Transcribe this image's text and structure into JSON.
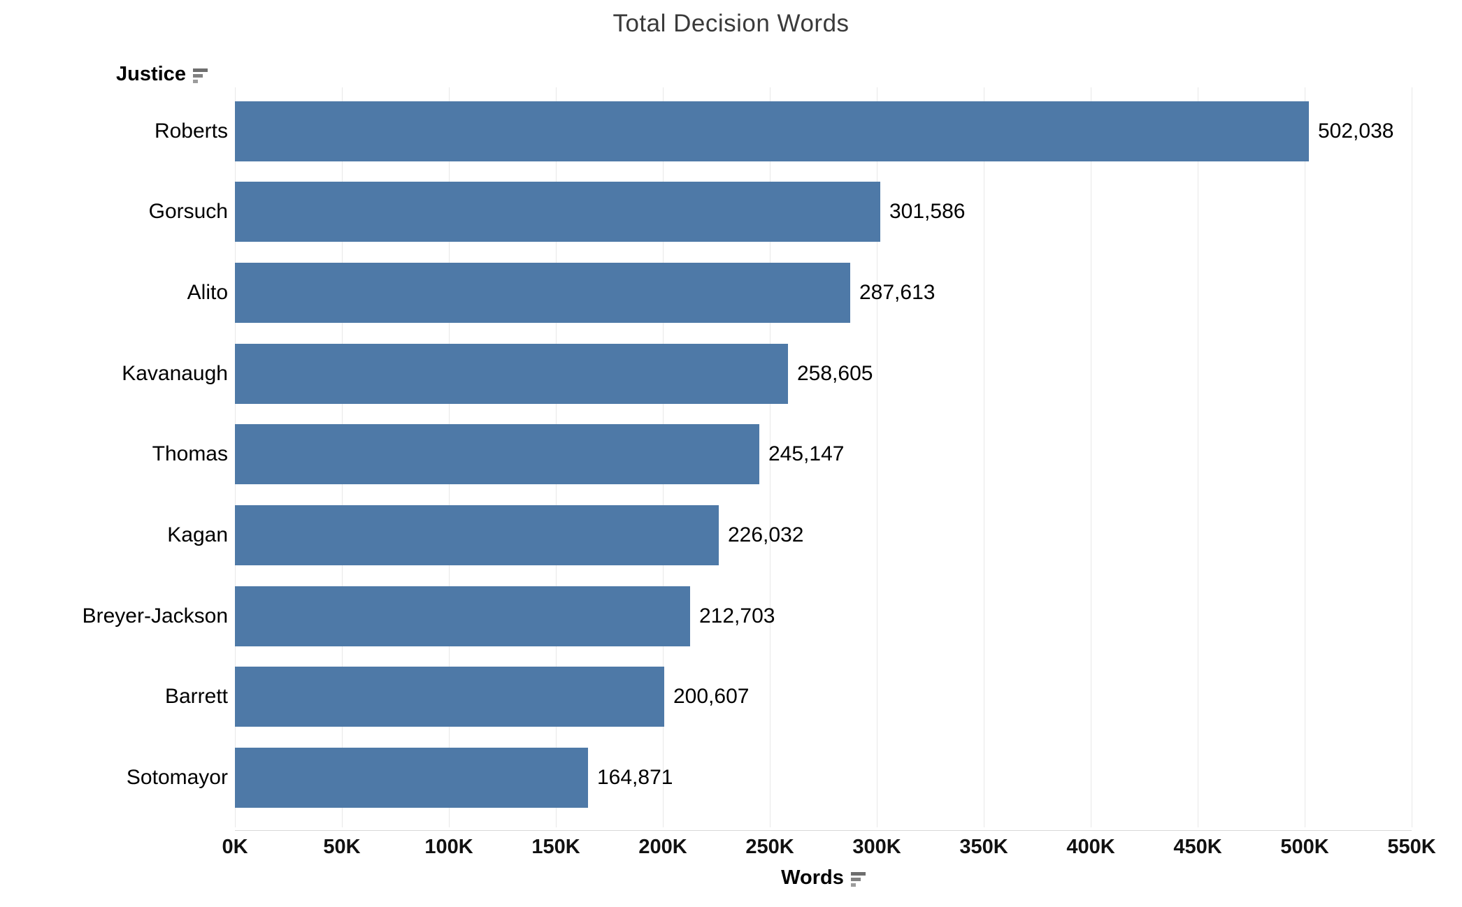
{
  "title": "Total Decision Words",
  "y_axis": {
    "label": "Justice",
    "sort_icon": "sort-descending-icon"
  },
  "x_axis": {
    "label": "Words",
    "sort_icon": "sort-descending-icon",
    "ticks": [
      "0K",
      "50K",
      "100K",
      "150K",
      "200K",
      "250K",
      "300K",
      "350K",
      "400K",
      "450K",
      "500K",
      "550K"
    ]
  },
  "colors": {
    "bar": "#4e79a7",
    "gridline": "#e8e8e8",
    "title_text": "#3a3a3a",
    "label_text": "#000000",
    "sort_icon_gray": "#6e6e6e"
  },
  "chart_data": {
    "type": "bar",
    "orientation": "horizontal",
    "title": "Total Decision Words",
    "xlabel": "Words",
    "ylabel": "Justice",
    "xlim": [
      0,
      550000
    ],
    "x_tick_interval": 50000,
    "grid": "vertical-only",
    "sort": "descending-by-value",
    "bar_color": "#4e79a7",
    "categories": [
      "Roberts",
      "Gorsuch",
      "Alito",
      "Kavanaugh",
      "Thomas",
      "Kagan",
      "Breyer-Jackson",
      "Barrett",
      "Sotomayor"
    ],
    "values": [
      502038,
      301586,
      287613,
      258605,
      245147,
      226032,
      212703,
      200607,
      164871
    ],
    "value_labels": [
      "502,038",
      "301,586",
      "287,613",
      "258,605",
      "245,147",
      "226,032",
      "212,703",
      "200,607",
      "164,871"
    ]
  }
}
